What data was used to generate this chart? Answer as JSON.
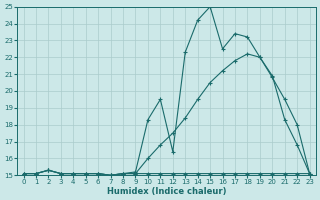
{
  "xlabel": "Humidex (Indice chaleur)",
  "xlim": [
    -0.5,
    23.5
  ],
  "ylim": [
    15,
    25
  ],
  "yticks": [
    15,
    16,
    17,
    18,
    19,
    20,
    21,
    22,
    23,
    24,
    25
  ],
  "xticks": [
    0,
    1,
    2,
    3,
    4,
    5,
    6,
    7,
    8,
    9,
    10,
    11,
    12,
    13,
    14,
    15,
    16,
    17,
    18,
    19,
    20,
    21,
    22,
    23
  ],
  "bg_color": "#cce8e8",
  "line_color": "#1a6b6b",
  "grid_color": "#aacccc",
  "line1_x": [
    0,
    1,
    2,
    3,
    4,
    5,
    6,
    7,
    8,
    9,
    10,
    11,
    12,
    13,
    14,
    15,
    16,
    17,
    18,
    19,
    20,
    21,
    22,
    23
  ],
  "line1_y": [
    15.1,
    15.1,
    15.3,
    15.1,
    15.1,
    15.1,
    15.1,
    15.0,
    15.1,
    15.1,
    15.1,
    15.1,
    15.1,
    15.1,
    15.1,
    15.1,
    15.1,
    15.1,
    15.1,
    15.1,
    15.1,
    15.1,
    15.1,
    15.1
  ],
  "line2_x": [
    0,
    1,
    2,
    3,
    4,
    5,
    6,
    7,
    8,
    9,
    10,
    11,
    12,
    13,
    14,
    15,
    16,
    17,
    18,
    19,
    20,
    21,
    22,
    23
  ],
  "line2_y": [
    15.1,
    15.1,
    15.3,
    15.1,
    15.1,
    15.1,
    15.1,
    15.0,
    15.1,
    15.1,
    16.0,
    16.8,
    17.5,
    18.4,
    19.5,
    20.5,
    21.2,
    21.8,
    22.2,
    22.0,
    20.8,
    19.5,
    18.0,
    15.1
  ],
  "line3_x": [
    0,
    1,
    2,
    3,
    4,
    5,
    6,
    7,
    8,
    9,
    10,
    11,
    12,
    13,
    14,
    15,
    16,
    17,
    18,
    19,
    20,
    21,
    22,
    23
  ],
  "line3_y": [
    15.1,
    15.1,
    15.3,
    15.1,
    15.1,
    15.1,
    15.1,
    15.0,
    15.1,
    15.2,
    18.3,
    19.5,
    16.4,
    22.3,
    24.2,
    25.0,
    22.5,
    23.4,
    23.2,
    22.0,
    20.9,
    18.3,
    16.8,
    15.1
  ]
}
